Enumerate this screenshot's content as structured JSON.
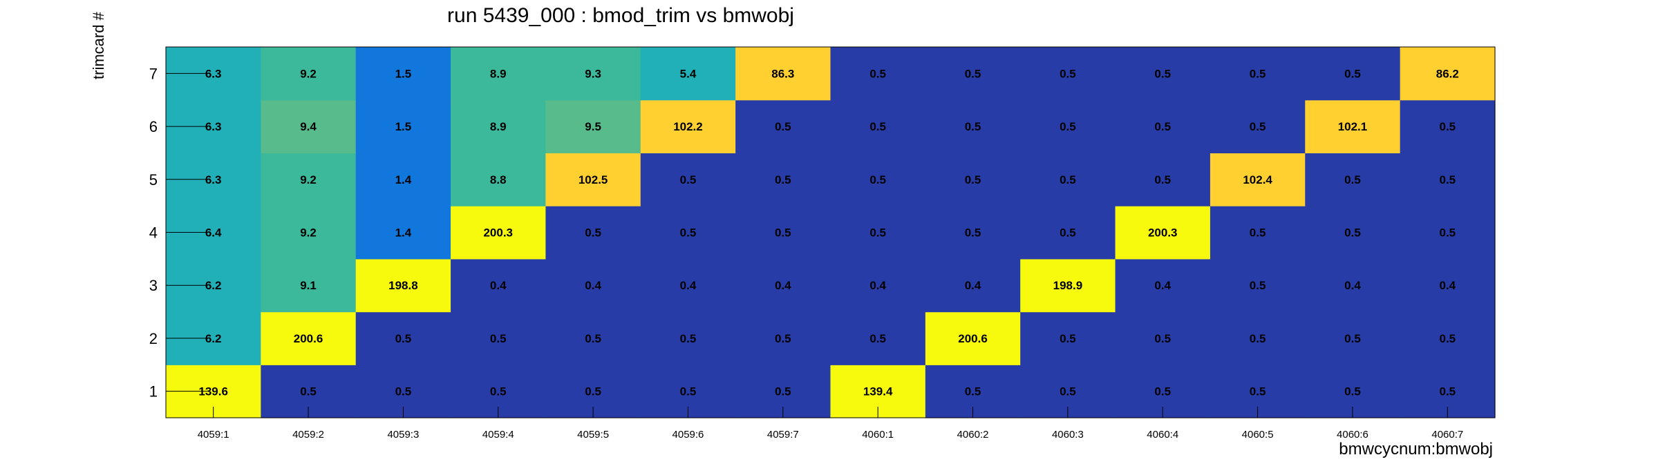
{
  "chart_data": {
    "type": "heatmap",
    "title": "run 5439_000 : bmod_trim vs bmwobj",
    "xlabel": "bmwcycnum:bmwobj",
    "ylabel": "trimcard #",
    "x_categories": [
      "4059:1",
      "4059:2",
      "4059:3",
      "4059:4",
      "4059:5",
      "4059:6",
      "4059:7",
      "4060:1",
      "4060:2",
      "4060:3",
      "4060:4",
      "4060:5",
      "4060:6",
      "4060:7"
    ],
    "y_categories": [
      "1",
      "2",
      "3",
      "4",
      "5",
      "6",
      "7"
    ],
    "values": [
      [
        "139.6",
        "0.5",
        "0.5",
        "0.5",
        "0.5",
        "0.5",
        "0.5",
        "139.4",
        "0.5",
        "0.5",
        "0.5",
        "0.5",
        "0.5",
        "0.5"
      ],
      [
        "6.2",
        "200.6",
        "0.5",
        "0.5",
        "0.5",
        "0.5",
        "0.5",
        "0.5",
        "200.6",
        "0.5",
        "0.5",
        "0.5",
        "0.5",
        "0.5"
      ],
      [
        "6.2",
        "9.1",
        "198.8",
        "0.4",
        "0.4",
        "0.4",
        "0.4",
        "0.4",
        "0.4",
        "198.9",
        "0.4",
        "0.5",
        "0.4",
        "0.4"
      ],
      [
        "6.4",
        "9.2",
        "1.4",
        "200.3",
        "0.5",
        "0.5",
        "0.5",
        "0.5",
        "0.5",
        "0.5",
        "200.3",
        "0.5",
        "0.5",
        "0.5"
      ],
      [
        "6.3",
        "9.2",
        "1.4",
        "8.8",
        "102.5",
        "0.5",
        "0.5",
        "0.5",
        "0.5",
        "0.5",
        "0.5",
        "102.4",
        "0.5",
        "0.5"
      ],
      [
        "6.3",
        "9.4",
        "1.5",
        "8.9",
        "9.5",
        "102.2",
        "0.5",
        "0.5",
        "0.5",
        "0.5",
        "0.5",
        "0.5",
        "102.1",
        "0.5"
      ],
      [
        "6.3",
        "9.2",
        "1.5",
        "8.9",
        "9.3",
        "5.4",
        "86.3",
        "0.5",
        "0.5",
        "0.5",
        "0.5",
        "0.5",
        "0.5",
        "86.2"
      ]
    ],
    "colors": {
      "low": "#283ca8",
      "low_mid": "#1177dd",
      "teal": "#22b0b8",
      "green_teal": "#3cb89a",
      "green": "#58bb8c",
      "gold": "#ffd030",
      "yellow": "#f8fa0e"
    }
  }
}
